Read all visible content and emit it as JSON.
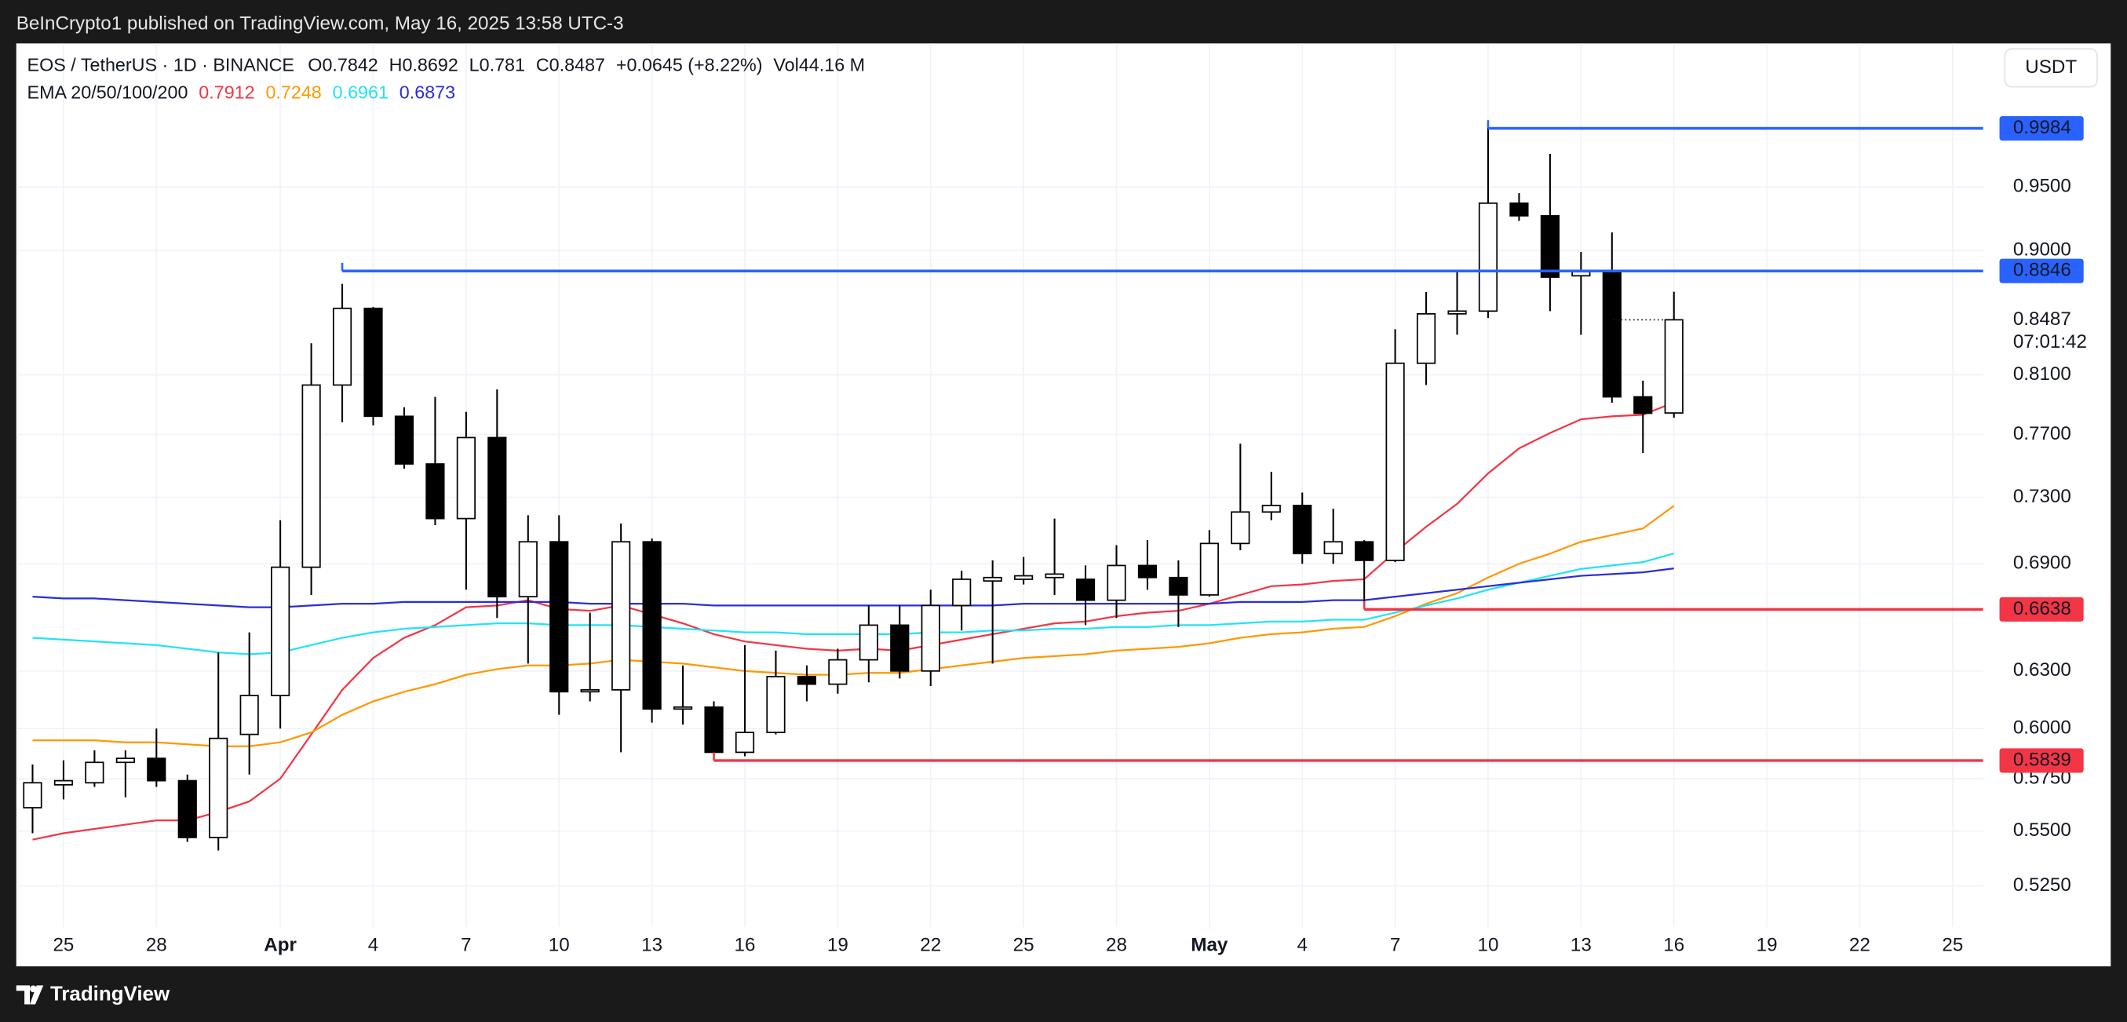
{
  "header": "BeInCrypto1 published on TradingView.com, May 16, 2025 13:58 UTC-3",
  "footer": "TradingView",
  "currency": "USDT",
  "countdown": "07:01:42",
  "legend": {
    "symbol": "EOS / TetherUS · 1D · BINANCE",
    "open_label": "O",
    "high_label": "H",
    "low_label": "L",
    "close_label": "C",
    "change": "+0.0645 (+8.22%)",
    "volume_label": "Vol",
    "volume": "44.16 M",
    "ema_label": "EMA 20/50/100/200"
  },
  "chart_data": {
    "type": "candlestick",
    "log_scale": true,
    "grid": true,
    "up_color": "#ffffff",
    "down_color": "#000000",
    "wick_color": "#000000",
    "x": [
      "03-24",
      "03-25",
      "03-26",
      "03-27",
      "03-28",
      "03-29",
      "03-30",
      "03-31",
      "04-01",
      "04-02",
      "04-03",
      "04-04",
      "04-05",
      "04-06",
      "04-07",
      "04-08",
      "04-09",
      "04-10",
      "04-11",
      "04-12",
      "04-13",
      "04-14",
      "04-15",
      "04-16",
      "04-17",
      "04-18",
      "04-19",
      "04-20",
      "04-21",
      "04-22",
      "04-23",
      "04-24",
      "04-25",
      "04-26",
      "04-27",
      "04-28",
      "04-29",
      "04-30",
      "05-01",
      "05-02",
      "05-03",
      "05-04",
      "05-05",
      "05-06",
      "05-07",
      "05-08",
      "05-09",
      "05-10",
      "05-11",
      "05-12",
      "05-13",
      "05-14",
      "05-15",
      "05-16"
    ],
    "open": [
      0.561,
      0.572,
      0.573,
      0.583,
      0.585,
      0.574,
      0.547,
      0.597,
      0.617,
      0.688,
      0.803,
      0.857,
      0.782,
      0.751,
      0.717,
      0.768,
      0.671,
      0.703,
      0.619,
      0.62,
      0.703,
      0.61,
      0.611,
      0.588,
      0.598,
      0.627,
      0.623,
      0.636,
      0.655,
      0.63,
      0.666,
      0.68,
      0.681,
      0.682,
      0.681,
      0.669,
      0.689,
      0.682,
      0.672,
      0.702,
      0.721,
      0.725,
      0.696,
      0.703,
      0.692,
      0.818,
      0.853,
      0.855,
      0.937,
      0.927,
      0.881,
      0.885,
      0.795,
      0.7842
    ],
    "high": [
      0.582,
      0.584,
      0.589,
      0.589,
      0.6,
      0.577,
      0.64,
      0.651,
      0.716,
      0.832,
      0.875,
      0.858,
      0.788,
      0.795,
      0.785,
      0.8,
      0.719,
      0.719,
      0.662,
      0.714,
      0.705,
      0.633,
      0.614,
      0.644,
      0.641,
      0.633,
      0.642,
      0.666,
      0.666,
      0.675,
      0.686,
      0.692,
      0.694,
      0.717,
      0.689,
      0.701,
      0.704,
      0.692,
      0.71,
      0.764,
      0.746,
      0.733,
      0.723,
      0.704,
      0.842,
      0.869,
      0.884,
      0.9984,
      0.945,
      0.977,
      0.899,
      0.914,
      0.806,
      0.8692
    ],
    "low": [
      0.549,
      0.565,
      0.571,
      0.566,
      0.571,
      0.545,
      0.541,
      0.577,
      0.6,
      0.672,
      0.778,
      0.776,
      0.748,
      0.713,
      0.675,
      0.659,
      0.634,
      0.607,
      0.614,
      0.588,
      0.603,
      0.602,
      0.5839,
      0.586,
      0.597,
      0.614,
      0.618,
      0.624,
      0.626,
      0.622,
      0.652,
      0.634,
      0.678,
      0.672,
      0.655,
      0.659,
      0.675,
      0.654,
      0.671,
      0.698,
      0.716,
      0.69,
      0.69,
      0.665,
      0.691,
      0.803,
      0.838,
      0.85,
      0.923,
      0.855,
      0.838,
      0.791,
      0.758,
      0.781
    ],
    "close": [
      0.573,
      0.574,
      0.583,
      0.585,
      0.574,
      0.547,
      0.595,
      0.617,
      0.688,
      0.803,
      0.857,
      0.782,
      0.751,
      0.717,
      0.768,
      0.671,
      0.703,
      0.619,
      0.62,
      0.703,
      0.61,
      0.611,
      0.588,
      0.598,
      0.627,
      0.623,
      0.636,
      0.655,
      0.63,
      0.666,
      0.681,
      0.682,
      0.683,
      0.684,
      0.669,
      0.689,
      0.682,
      0.672,
      0.702,
      0.721,
      0.725,
      0.696,
      0.703,
      0.692,
      0.818,
      0.853,
      0.855,
      0.937,
      0.927,
      0.88,
      0.884,
      0.795,
      0.784,
      0.8487
    ],
    "series": [
      {
        "name": "EMA 20",
        "color": "#f23645",
        "values": [
          0.546,
          0.549,
          0.551,
          0.553,
          0.555,
          0.555,
          0.559,
          0.564,
          0.575,
          0.597,
          0.62,
          0.637,
          0.648,
          0.655,
          0.665,
          0.666,
          0.669,
          0.664,
          0.663,
          0.666,
          0.661,
          0.656,
          0.65,
          0.646,
          0.644,
          0.642,
          0.641,
          0.642,
          0.641,
          0.644,
          0.647,
          0.65,
          0.653,
          0.656,
          0.657,
          0.66,
          0.662,
          0.663,
          0.667,
          0.672,
          0.677,
          0.678,
          0.68,
          0.681,
          0.697,
          0.712,
          0.726,
          0.745,
          0.761,
          0.771,
          0.78,
          0.782,
          0.783,
          0.7912
        ]
      },
      {
        "name": "EMA 50",
        "color": "#ff9800",
        "values": [
          0.594,
          0.594,
          0.594,
          0.593,
          0.593,
          0.592,
          0.591,
          0.591,
          0.593,
          0.598,
          0.607,
          0.614,
          0.619,
          0.623,
          0.628,
          0.631,
          0.633,
          0.633,
          0.634,
          0.636,
          0.635,
          0.634,
          0.632,
          0.63,
          0.629,
          0.628,
          0.628,
          0.629,
          0.629,
          0.631,
          0.633,
          0.635,
          0.637,
          0.638,
          0.639,
          0.641,
          0.642,
          0.643,
          0.645,
          0.648,
          0.65,
          0.651,
          0.653,
          0.654,
          0.66,
          0.667,
          0.673,
          0.682,
          0.69,
          0.696,
          0.703,
          0.707,
          0.711,
          0.7248
        ]
      },
      {
        "name": "EMA 100",
        "color": "#22e3f5",
        "values": [
          0.648,
          0.647,
          0.646,
          0.645,
          0.644,
          0.642,
          0.64,
          0.639,
          0.64,
          0.644,
          0.648,
          0.651,
          0.653,
          0.654,
          0.655,
          0.656,
          0.656,
          0.655,
          0.655,
          0.655,
          0.654,
          0.653,
          0.652,
          0.651,
          0.651,
          0.65,
          0.65,
          0.65,
          0.65,
          0.651,
          0.651,
          0.652,
          0.652,
          0.653,
          0.653,
          0.654,
          0.654,
          0.655,
          0.655,
          0.656,
          0.657,
          0.657,
          0.658,
          0.658,
          0.662,
          0.666,
          0.67,
          0.675,
          0.679,
          0.683,
          0.687,
          0.689,
          0.691,
          0.6961
        ]
      },
      {
        "name": "EMA 200",
        "color": "#2a2ed8",
        "values": [
          0.671,
          0.67,
          0.67,
          0.669,
          0.668,
          0.667,
          0.666,
          0.665,
          0.665,
          0.666,
          0.667,
          0.667,
          0.668,
          0.668,
          0.668,
          0.668,
          0.668,
          0.668,
          0.667,
          0.667,
          0.667,
          0.667,
          0.666,
          0.666,
          0.666,
          0.666,
          0.666,
          0.666,
          0.666,
          0.666,
          0.666,
          0.666,
          0.667,
          0.667,
          0.667,
          0.667,
          0.667,
          0.667,
          0.667,
          0.668,
          0.668,
          0.668,
          0.669,
          0.669,
          0.671,
          0.673,
          0.675,
          0.677,
          0.679,
          0.681,
          0.683,
          0.684,
          0.685,
          0.6873
        ]
      }
    ],
    "levels": [
      {
        "value": 0.9984,
        "color": "#2962ff",
        "start": "05-10"
      },
      {
        "value": 0.8846,
        "color": "#2962ff",
        "start": "04-03"
      },
      {
        "value": 0.6638,
        "color": "#f23645",
        "start": "05-06"
      },
      {
        "value": 0.5839,
        "color": "#f23645",
        "start": "04-15"
      }
    ],
    "ylim": [
      0.507,
      1.073
    ],
    "yticks": [
      {
        "value": 0.525,
        "label": "0.5250"
      },
      {
        "value": 0.55,
        "label": "0.5500"
      },
      {
        "value": 0.575,
        "label": "0.5750"
      },
      {
        "value": 0.6,
        "label": "0.6000"
      },
      {
        "value": 0.63,
        "label": "0.6300"
      },
      {
        "value": 0.69,
        "label": "0.6900"
      },
      {
        "value": 0.73,
        "label": "0.7300"
      },
      {
        "value": 0.77,
        "label": "0.7700"
      },
      {
        "value": 0.81,
        "label": "0.8100"
      },
      {
        "value": 0.9,
        "label": "0.9000"
      },
      {
        "value": 0.95,
        "label": "0.9500"
      }
    ],
    "xticks": [
      {
        "value": "03-25",
        "label": "25"
      },
      {
        "value": "03-28",
        "label": "28"
      },
      {
        "value": "04-01",
        "label": "Apr"
      },
      {
        "value": "04-04",
        "label": "4"
      },
      {
        "value": "04-07",
        "label": "7"
      },
      {
        "value": "04-10",
        "label": "10"
      },
      {
        "value": "04-13",
        "label": "13"
      },
      {
        "value": "04-16",
        "label": "16"
      },
      {
        "value": "04-19",
        "label": "19"
      },
      {
        "value": "04-22",
        "label": "22"
      },
      {
        "value": "04-25",
        "label": "25"
      },
      {
        "value": "04-28",
        "label": "28"
      },
      {
        "value": "05-01",
        "label": "May"
      },
      {
        "value": "05-04",
        "label": "4"
      },
      {
        "value": "05-07",
        "label": "7"
      },
      {
        "value": "05-10",
        "label": "10"
      },
      {
        "value": "05-13",
        "label": "13"
      },
      {
        "value": "05-16",
        "label": "16"
      },
      {
        "value": "05-19",
        "label": "19"
      },
      {
        "value": "05-22",
        "label": "22"
      },
      {
        "value": "05-25",
        "label": "25"
      }
    ]
  }
}
